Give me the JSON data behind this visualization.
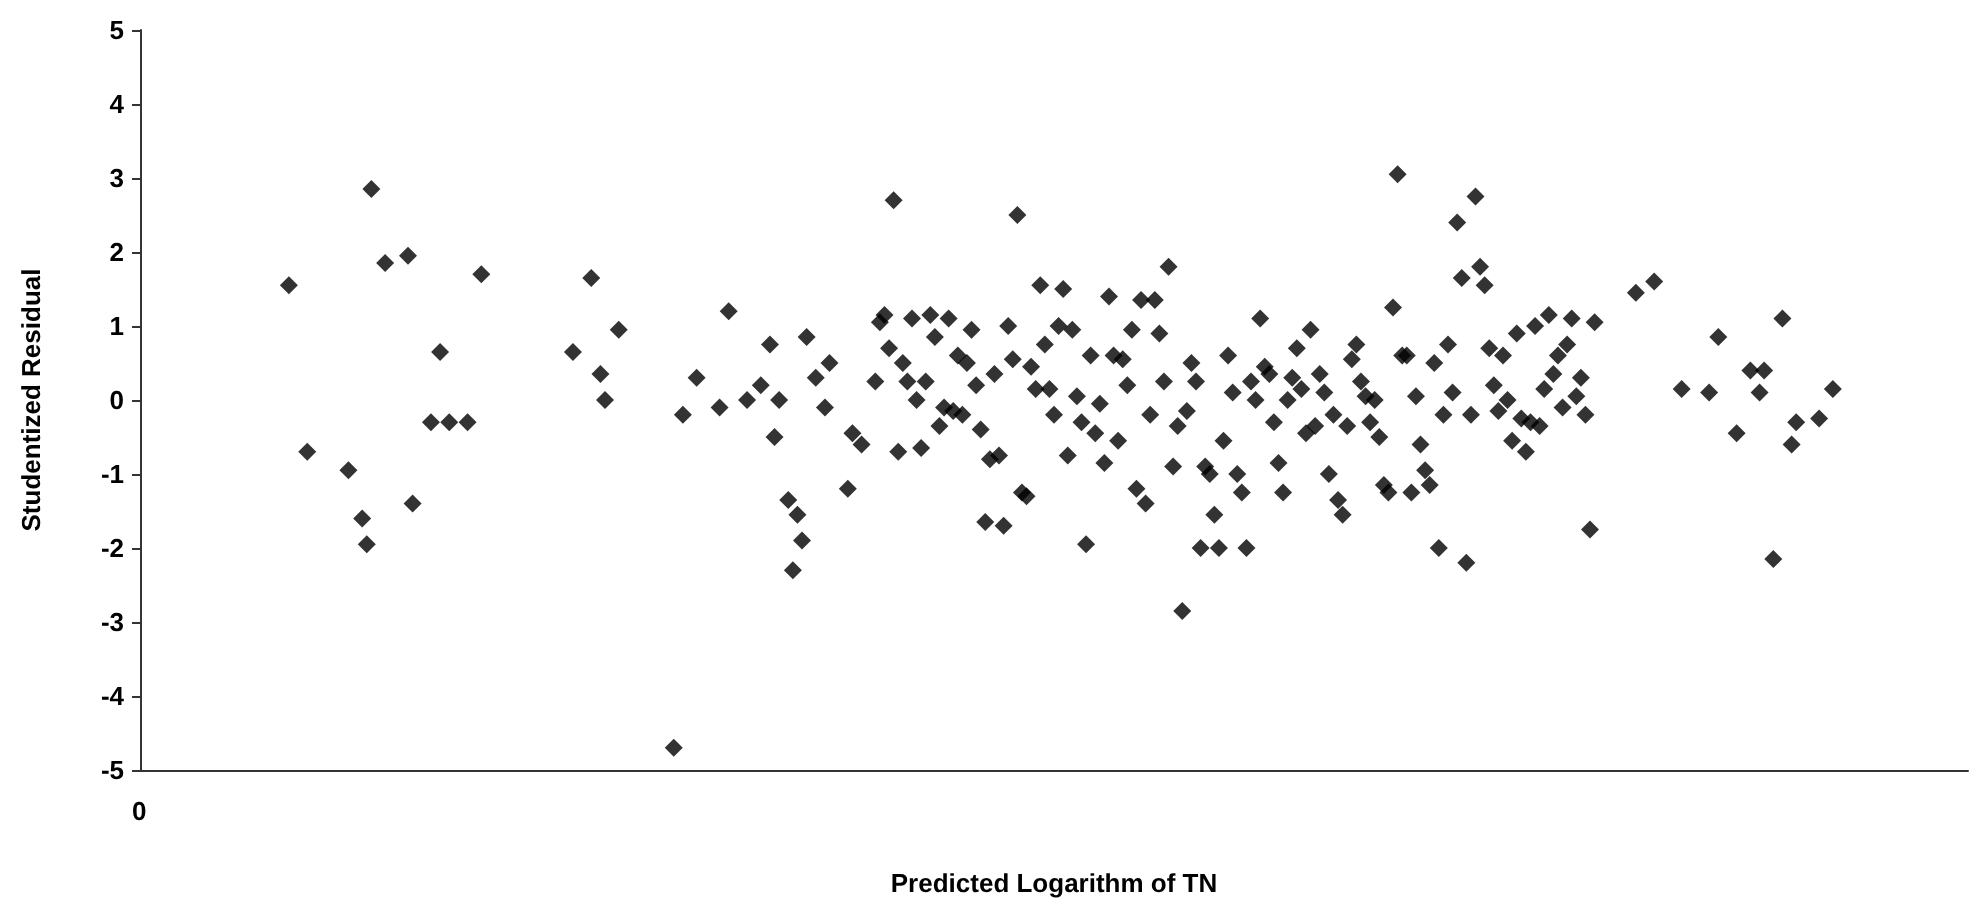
{
  "chart_data": {
    "type": "scatter",
    "xlabel": "Predicted Logarithm of TN",
    "ylabel": "Studentized Residual",
    "annotations": [
      "0"
    ],
    "categories": [
      null,
      null,
      null,
      null,
      null,
      null,
      null,
      null,
      null,
      null,
      null,
      null,
      null,
      null,
      null,
      null,
      null,
      null,
      null,
      null,
      null,
      null,
      null,
      null,
      null,
      null,
      null,
      null,
      null,
      null,
      null,
      null,
      null,
      null,
      null,
      null,
      null,
      null,
      null,
      null,
      null,
      null,
      null,
      null,
      null,
      null,
      null,
      null,
      null,
      null,
      null,
      null,
      null,
      null,
      null,
      null,
      null,
      null,
      null,
      null,
      null,
      null,
      null,
      null,
      null,
      null,
      null,
      null,
      null,
      null,
      null,
      null,
      null,
      null,
      null,
      null,
      null,
      null,
      null,
      null,
      null,
      null,
      null,
      null,
      null,
      null,
      null,
      null,
      null,
      null,
      null,
      null,
      null,
      null,
      null,
      null,
      null,
      null,
      null,
      null,
      null,
      null,
      null,
      null,
      null,
      null,
      null,
      null,
      null,
      null,
      null,
      null,
      null,
      null,
      null,
      null,
      null,
      null,
      null,
      null,
      null,
      null,
      null,
      null,
      null,
      null,
      null,
      null,
      null,
      null,
      null,
      null,
      null,
      null,
      null,
      null,
      null,
      null,
      null,
      null,
      null,
      null,
      null,
      null,
      null,
      null,
      null,
      null,
      null,
      null,
      null,
      null,
      null,
      null,
      null,
      null,
      null,
      null,
      null,
      null,
      null,
      null,
      null,
      null,
      null,
      null,
      null,
      null,
      null,
      null,
      null,
      null,
      null,
      null,
      null,
      null,
      null,
      null,
      null,
      null,
      null,
      null,
      null,
      null,
      null,
      null,
      null,
      null,
      null,
      null,
      null,
      null,
      null,
      null,
      null,
      null,
      null,
      null,
      null,
      null,
      null,
      null,
      null,
      null,
      null,
      null,
      null,
      null,
      null,
      null,
      null,
      null,
      null,
      null,
      null,
      null,
      null,
      null,
      null,
      null,
      null,
      null,
      null,
      null,
      null,
      null,
      null,
      null,
      null,
      null,
      null,
      null,
      null,
      null,
      null,
      null,
      null,
      null,
      null,
      null,
      null,
      null,
      null,
      null,
      null,
      null,
      null,
      null,
      null,
      null,
      null,
      null,
      null,
      null,
      null,
      null,
      null,
      null,
      null,
      null,
      null,
      null,
      null,
      null,
      null,
      null,
      null,
      null,
      null,
      null,
      null,
      null,
      null,
      null,
      null,
      null,
      null,
      null,
      null,
      null,
      null,
      null,
      null,
      null,
      null,
      null,
      null,
      null,
      null,
      null,
      null,
      null,
      null,
      null,
      null,
      null,
      null,
      null,
      null,
      null,
      null,
      null,
      null,
      null,
      null,
      null,
      null,
      null,
      null,
      null,
      null,
      null,
      null,
      null,
      null,
      null,
      null,
      null,
      null,
      null,
      null,
      null,
      null,
      null,
      null,
      null,
      null,
      null,
      null,
      null,
      null,
      null,
      null,
      null,
      null,
      null,
      null,
      null,
      null,
      null,
      null,
      null,
      null,
      null,
      null,
      null,
      null,
      null,
      null,
      null,
      null,
      null,
      null,
      null,
      null,
      null,
      null,
      null,
      null,
      null,
      null,
      null,
      null,
      null,
      null,
      null,
      null,
      null,
      null,
      null,
      null,
      null,
      null,
      null,
      null,
      null,
      null,
      null,
      null,
      null,
      null,
      null,
      null,
      null,
      null,
      null,
      null,
      null,
      null,
      null,
      null,
      null,
      null,
      null,
      null,
      null,
      null,
      null,
      null
    ],
    "ylim": [
      -5,
      5
    ],
    "yticks": [
      -5,
      -4,
      -3,
      -2,
      -1,
      0,
      1,
      2,
      3,
      4,
      5
    ],
    "marker": "diamond",
    "series": [
      {
        "color": "#000000",
        "values": [
          null,
          null,
          null,
          null,
          null,
          null,
          null,
          null,
          null,
          null,
          null,
          null,
          null,
          null,
          null,
          null,
          null,
          null,
          null,
          null,
          null,
          null,
          null,
          null,
          null,
          null,
          null,
          null,
          null,
          null,
          null,
          null,
          1.55,
          null,
          null,
          null,
          -0.7,
          null,
          null,
          null,
          null,
          null,
          null,
          null,
          null,
          -0.95,
          null,
          null,
          -1.6,
          -1.95,
          2.85,
          null,
          null,
          1.85,
          null,
          null,
          null,
          null,
          1.95,
          -1.4,
          null,
          null,
          null,
          -0.3,
          null,
          0.65,
          null,
          -0.3,
          null,
          null,
          null,
          -0.3,
          null,
          null,
          1.7,
          null,
          null,
          null,
          null,
          null,
          null,
          null,
          null,
          null,
          null,
          null,
          null,
          null,
          null,
          null,
          null,
          null,
          null,
          null,
          0.65,
          null,
          null,
          null,
          1.65,
          null,
          0.35,
          0,
          null,
          null,
          0.95,
          null,
          null,
          null,
          null,
          null,
          null,
          null,
          null,
          null,
          null,
          null,
          -4.7,
          null,
          -0.2,
          null,
          null,
          0.3,
          null,
          null,
          null,
          null,
          -0.1,
          null,
          1.2,
          null,
          null,
          null,
          0,
          null,
          null,
          0.2,
          null,
          0.75,
          -0.5,
          0,
          null,
          -1.35,
          -2.3,
          -1.55,
          -1.9,
          0.85,
          null,
          0.3,
          null,
          -0.1,
          0.5,
          null,
          null,
          null,
          -1.2,
          -0.45,
          null,
          -0.6,
          null,
          null,
          0.25,
          1.05,
          1.15,
          0.7,
          2.7,
          -0.7,
          0.5,
          0.25,
          1.1,
          0,
          -0.65,
          0.25,
          1.15,
          0.85,
          -0.35,
          -0.1,
          1.1,
          -0.15,
          0.6,
          -0.2,
          0.5,
          0.95,
          0.2,
          -0.4,
          -1.65,
          -0.8,
          0.35,
          -0.75,
          -1.7,
          1.0,
          0.55,
          2.5,
          -1.25,
          -1.3,
          0.45,
          0.15,
          1.55,
          0.75,
          0.15,
          -0.2,
          1.0,
          1.5,
          -0.75,
          0.95,
          0.05,
          -0.3,
          -1.95,
          0.6,
          -0.45,
          -0.05,
          -0.85,
          1.4,
          0.6,
          -0.55,
          0.55,
          0.2,
          0.95,
          -1.2,
          1.35,
          -1.4,
          -0.2,
          1.35,
          0.9,
          0.25,
          1.8,
          -0.9,
          -0.35,
          -2.85,
          -0.15,
          0.5,
          0.25,
          -2.0,
          -0.9,
          -1.0,
          -1.55,
          -2.0,
          -0.55,
          0.6,
          0.1,
          -1.0,
          -1.25,
          -2.0,
          0.25,
          0,
          1.1,
          0.45,
          0.35,
          -0.3,
          -0.85,
          -1.25,
          0,
          0.3,
          0.7,
          0.15,
          -0.45,
          0.95,
          -0.35,
          0.35,
          0.1,
          -1.0,
          -0.2,
          -1.35,
          -1.55,
          -0.35,
          0.55,
          0.75,
          0.25,
          0.05,
          -0.3,
          0,
          -0.5,
          -1.15,
          -1.25,
          1.25,
          3.05,
          0.6,
          0.6,
          -1.25,
          0.05,
          -0.6,
          -0.95,
          -1.15,
          0.5,
          -2.0,
          -0.2,
          0.75,
          0.1,
          2.4,
          1.65,
          -2.2,
          -0.2,
          2.75,
          1.8,
          1.55,
          0.7,
          0.2,
          -0.15,
          0.6,
          0,
          -0.55,
          0.9,
          -0.25,
          -0.7,
          -0.3,
          1.0,
          -0.35,
          0.15,
          1.15,
          0.35,
          0.6,
          -0.1,
          0.75,
          1.1,
          0.05,
          0.3,
          -0.2,
          -1.75,
          1.05,
          null,
          null,
          null,
          null,
          null,
          null,
          null,
          null,
          1.45,
          null,
          null,
          null,
          1.6,
          null,
          null,
          null,
          null,
          null,
          0.15,
          null,
          null,
          null,
          null,
          null,
          0.1,
          null,
          0.85,
          null,
          null,
          null,
          -0.45,
          null,
          null,
          0.4,
          null,
          0.1,
          0.4,
          null,
          -2.15,
          null,
          1.1,
          null,
          -0.6,
          -0.3,
          null,
          null,
          null,
          null,
          -0.25,
          null,
          null,
          0.15,
          null,
          null,
          null,
          null,
          null,
          null,
          null,
          null,
          null,
          null,
          null,
          null,
          null,
          null,
          null,
          null,
          null,
          null,
          null,
          null,
          null,
          null,
          null,
          null,
          null,
          null,
          null,
          null,
          null
        ]
      }
    ]
  }
}
